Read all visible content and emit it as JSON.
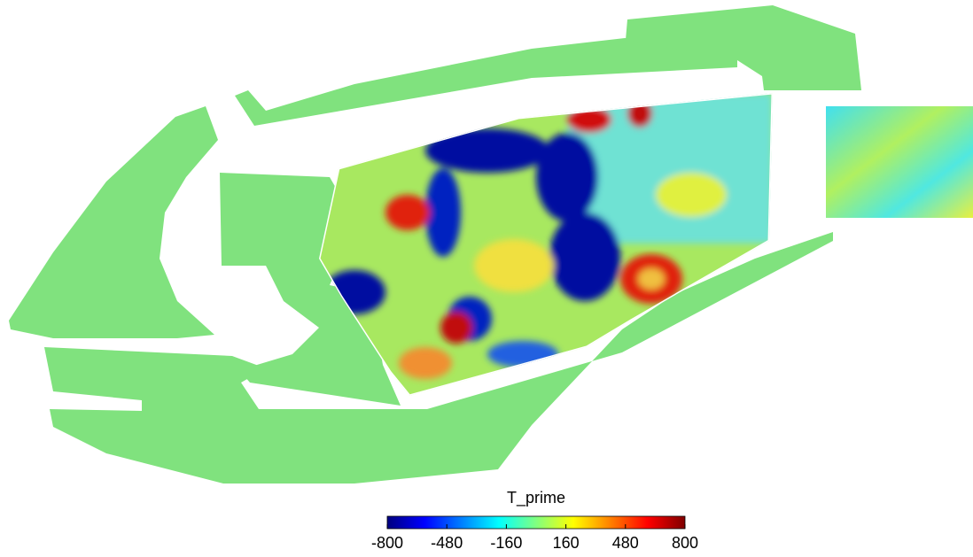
{
  "colorbar": {
    "title": "T_prime",
    "lim": [
      -800,
      800
    ],
    "ticks": [
      -800,
      -480,
      -160,
      160,
      480,
      800
    ]
  }
}
